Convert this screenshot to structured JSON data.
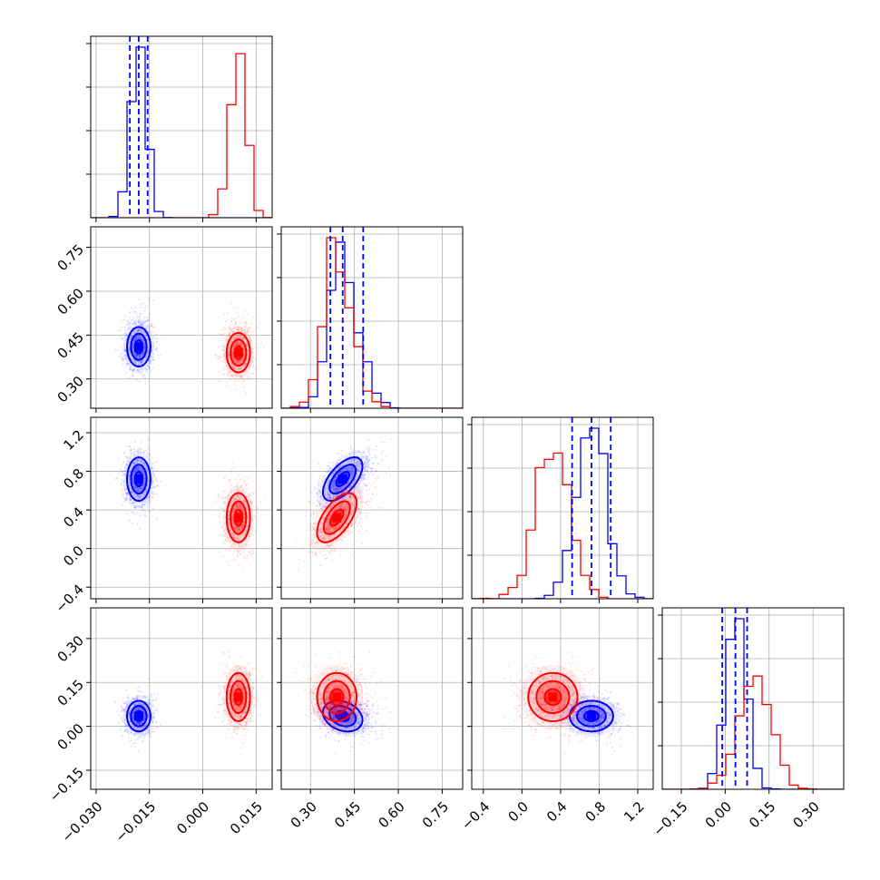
{
  "chart_data": {
    "type": "corner",
    "parameters": [
      {
        "ticks": [
          "−0.030",
          "−0.015",
          "0.000",
          "0.015"
        ],
        "tick_values": [
          -0.03,
          -0.015,
          0.0,
          0.015
        ],
        "range": [
          -0.0315,
          0.0195
        ]
      },
      {
        "ticks": [
          "0.30",
          "0.45",
          "0.60",
          "0.75"
        ],
        "tick_values": [
          0.3,
          0.45,
          0.6,
          0.75
        ],
        "range": [
          0.2,
          0.82
        ]
      },
      {
        "ticks": [
          "−0.4",
          "0.0",
          "0.4",
          "0.8",
          "1.2"
        ],
        "tick_values": [
          -0.4,
          0.0,
          0.4,
          0.8,
          1.2
        ],
        "range": [
          -0.52,
          1.36
        ]
      },
      {
        "ticks": [
          "−0.15",
          "0.00",
          "0.15",
          "0.30"
        ],
        "tick_values": [
          -0.15,
          0.0,
          0.15,
          0.3
        ],
        "range": [
          -0.215,
          0.405
        ]
      }
    ],
    "series": [
      {
        "color": "#0000ff",
        "means": [
          -0.018,
          0.41,
          0.72,
          0.035
        ],
        "sigmas": [
          0.0022,
          0.045,
          0.15,
          0.035
        ],
        "corr": [
          [
            1,
            0,
            0,
            0
          ],
          [
            0,
            1,
            0.6,
            -0.25
          ],
          [
            0,
            0.6,
            1,
            0
          ],
          [
            0,
            -0.25,
            0,
            1
          ]
        ],
        "quantiles": [
          [
            -0.0205,
            -0.018,
            -0.0155
          ],
          [
            0.368,
            0.41,
            0.48
          ],
          [
            0.52,
            0.72,
            0.92
          ],
          [
            -0.01,
            0.035,
            0.075
          ]
        ]
      },
      {
        "color": "#ff0000",
        "means": [
          0.01,
          0.39,
          0.32,
          0.1
        ],
        "sigmas": [
          0.0022,
          0.045,
          0.17,
          0.055
        ],
        "corr": [
          [
            1,
            0,
            0,
            0
          ],
          [
            0,
            1,
            0.6,
            0
          ],
          [
            0,
            0.6,
            1,
            0
          ],
          [
            0,
            0,
            0,
            1
          ]
        ]
      }
    ],
    "diag_quantile_color": "#0000ff",
    "grid": true
  }
}
